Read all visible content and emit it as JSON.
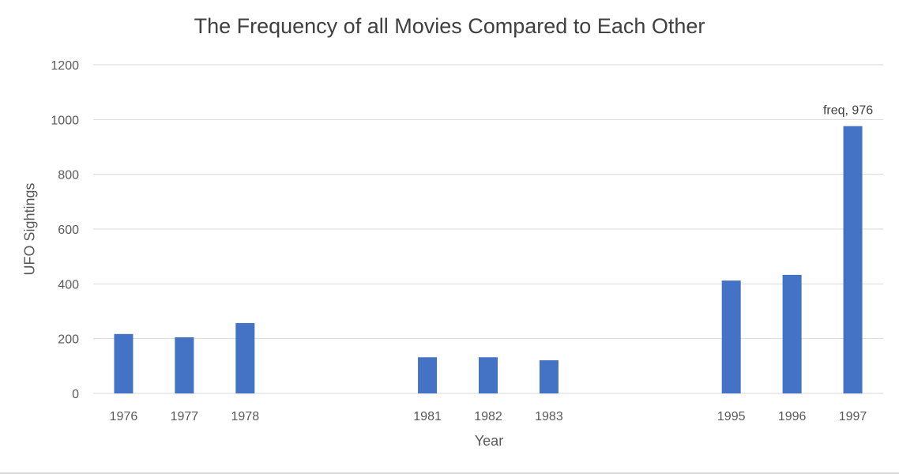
{
  "chart_data": {
    "type": "bar",
    "title": "The Frequency of all Movies Compared to Each Other",
    "xlabel": "Year",
    "ylabel": "UFO Sightings",
    "ylim": [
      0,
      1200
    ],
    "yticks": [
      0,
      200,
      400,
      600,
      800,
      1000,
      1200
    ],
    "grid": true,
    "legend": "none",
    "color": "#4472C4",
    "categories": [
      "1976",
      "1977",
      "1978",
      "",
      "",
      "1981",
      "1982",
      "1983",
      "",
      "",
      "1995",
      "1996",
      "1997"
    ],
    "values": [
      217,
      205,
      257,
      null,
      null,
      132,
      132,
      121,
      null,
      null,
      412,
      433,
      976
    ],
    "annotations": [
      {
        "category": "1997",
        "text": "freq, 976"
      }
    ]
  }
}
